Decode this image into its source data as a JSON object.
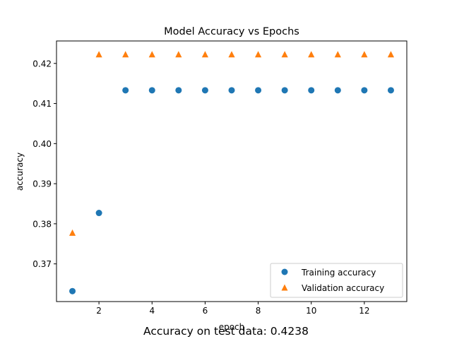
{
  "chart_data": {
    "type": "scatter",
    "title": "Model Accuracy vs Epochs",
    "xlabel": "epoch",
    "ylabel": "accuracy",
    "xlim": [
      0.4,
      13.6
    ],
    "ylim": [
      0.3606,
      0.4256
    ],
    "xticks": [
      2,
      4,
      6,
      8,
      10,
      12
    ],
    "yticks": [
      0.37,
      0.38,
      0.39,
      0.4,
      0.41,
      0.42
    ],
    "ytick_labels": [
      "0.37",
      "0.38",
      "0.39",
      "0.40",
      "0.41",
      "0.42"
    ],
    "grid": false,
    "legend_position": "lower-right",
    "series": [
      {
        "name": "Training accuracy",
        "marker": "circle",
        "color": "#1f77b4",
        "x": [
          1,
          2,
          3,
          4,
          5,
          6,
          7,
          8,
          9,
          10,
          11,
          12,
          13
        ],
        "y": [
          0.3632,
          0.3827,
          0.4133,
          0.4133,
          0.4133,
          0.4133,
          0.4133,
          0.4133,
          0.4133,
          0.4133,
          0.4133,
          0.4133,
          0.4133
        ]
      },
      {
        "name": "Validation accuracy",
        "marker": "triangle",
        "color": "#ff7f0e",
        "x": [
          1,
          2,
          3,
          4,
          5,
          6,
          7,
          8,
          9,
          10,
          11,
          12,
          13
        ],
        "y": [
          0.3777,
          0.4222,
          0.4222,
          0.4222,
          0.4222,
          0.4222,
          0.4222,
          0.4222,
          0.4222,
          0.4222,
          0.4222,
          0.4222,
          0.4222
        ]
      }
    ],
    "footer_text": "Accuracy on test data: 0.4238"
  }
}
